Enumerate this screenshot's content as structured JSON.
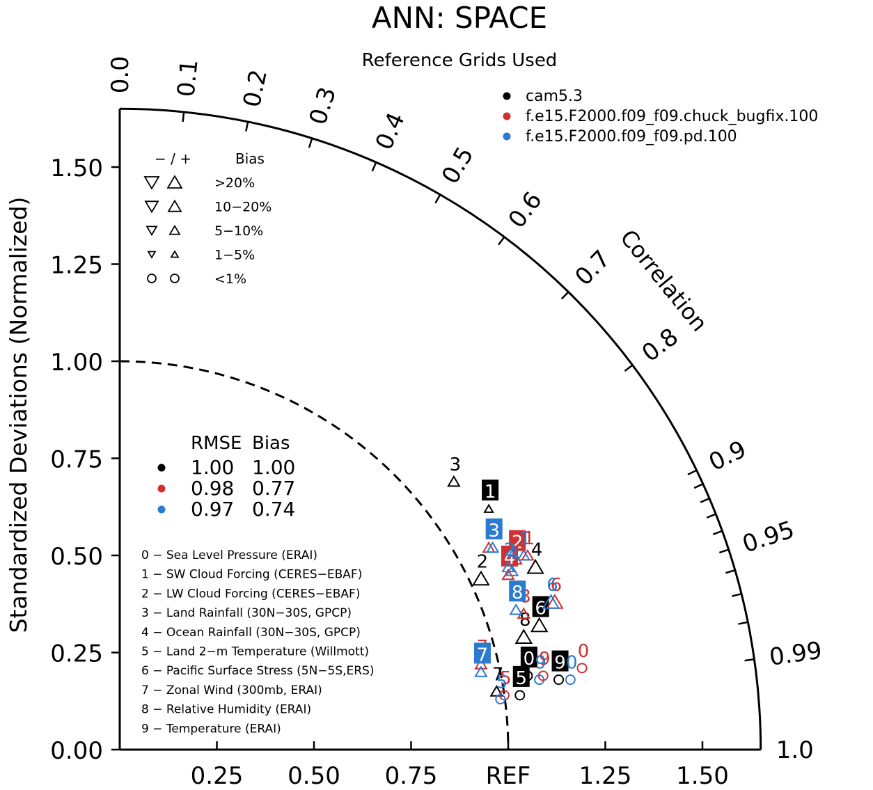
{
  "chart_data": {
    "type": "scatter",
    "subtype": "taylor-diagram",
    "title": "ANN: SPACE",
    "subtitle": "Reference Grids Used",
    "ylabel": "Standardized Deviations (Normalized)",
    "arc_label": "Correlation",
    "ylim": [
      0,
      1.65
    ],
    "y_ticks": [
      "0.00",
      "0.25",
      "0.50",
      "0.75",
      "1.00",
      "1.25",
      "1.50"
    ],
    "x_ticks": [
      "0.25",
      "0.50",
      "0.75",
      "REF",
      "1.25",
      "1.50"
    ],
    "x_tick_values": [
      0.25,
      0.5,
      0.75,
      1.0,
      1.25,
      1.5
    ],
    "correlation_labels": [
      "0.0",
      "0.1",
      "0.2",
      "0.3",
      "0.4",
      "0.5",
      "0.6",
      "0.7",
      "0.8",
      "0.9",
      "0.95",
      "0.99",
      "1.0"
    ],
    "colors": {
      "cam5.3": "#000000",
      "chuck_bugfix": "#d03030",
      "pd": "#2a7ad0"
    },
    "legend": [
      {
        "name": "cam5.3",
        "color": "#000000"
      },
      {
        "name": "f.e15.F2000.f09_f09.chuck_bugfix.100",
        "color": "#d03030"
      },
      {
        "name": "f.e15.F2000.f09_f09.pd.100",
        "color": "#2a7ad0"
      }
    ],
    "bias_legend": {
      "header_signs": "−  /  +",
      "header_label": "Bias",
      "rows": [
        ">20%",
        "10−20%",
        "5−10%",
        "1−5%",
        "<1%"
      ]
    },
    "rmse_table": {
      "headers": [
        "RMSE",
        "Bias"
      ],
      "rows": [
        {
          "color": "#000000",
          "rmse": "1.00",
          "bias": "1.00"
        },
        {
          "color": "#d03030",
          "rmse": "0.98",
          "bias": "0.77"
        },
        {
          "color": "#2a7ad0",
          "rmse": "0.97",
          "bias": "0.74"
        }
      ]
    },
    "variables": [
      "0 − Sea Level Pressure (ERAI)",
      "1 − SW Cloud Forcing (CERES−EBAF)",
      "2 − LW Cloud Forcing (CERES−EBAF)",
      "3 − Land Rainfall (30N−30S, GPCP)",
      "4 − Ocean Rainfall (30N−30S, GPCP)",
      "5 − Land 2−m Temperature (Willmott)",
      "6 − Pacific Surface Stress (5N−5S,ERS)",
      "7 − Zonal Wind (300mb, ERAI)",
      "8 − Relative Humidity (ERAI)",
      "9 − Temperature (ERAI)"
    ],
    "points": [
      {
        "case": "cam5.3",
        "id": "0",
        "x": 1.05,
        "y": 0.19,
        "marker": "circle",
        "boxed": true
      },
      {
        "case": "cam5.3",
        "id": "1",
        "x": 0.95,
        "y": 0.62,
        "marker": "up-small",
        "boxed": true
      },
      {
        "case": "cam5.3",
        "id": "2",
        "x": 0.93,
        "y": 0.44,
        "marker": "up-large",
        "boxed": false
      },
      {
        "case": "cam5.3",
        "id": "3",
        "x": 0.86,
        "y": 0.69,
        "marker": "up-medium",
        "boxed": false
      },
      {
        "case": "cam5.3",
        "id": "4",
        "x": 1.07,
        "y": 0.47,
        "marker": "up-large",
        "boxed": false
      },
      {
        "case": "cam5.3",
        "id": "5",
        "x": 1.03,
        "y": 0.14,
        "marker": "circle",
        "boxed": true
      },
      {
        "case": "cam5.3",
        "id": "6",
        "x": 1.08,
        "y": 0.32,
        "marker": "up-large",
        "boxed": true
      },
      {
        "case": "cam5.3",
        "id": "7",
        "x": 0.97,
        "y": 0.15,
        "marker": "up-medium",
        "boxed": false
      },
      {
        "case": "cam5.3",
        "id": "8",
        "x": 1.04,
        "y": 0.29,
        "marker": "up-large",
        "boxed": false
      },
      {
        "case": "cam5.3",
        "id": "9",
        "x": 1.13,
        "y": 0.18,
        "marker": "circle",
        "boxed": true
      },
      {
        "case": "chuck_bugfix",
        "id": "0",
        "x": 1.19,
        "y": 0.21,
        "marker": "circle",
        "boxed": false
      },
      {
        "case": "chuck_bugfix",
        "id": "1",
        "x": 1.05,
        "y": 0.5,
        "marker": "up-medium",
        "boxed": false
      },
      {
        "case": "chuck_bugfix",
        "id": "2",
        "x": 1.02,
        "y": 0.49,
        "marker": "up-medium",
        "boxed": true
      },
      {
        "case": "chuck_bugfix",
        "id": "3",
        "x": 0.95,
        "y": 0.52,
        "marker": "up-medium",
        "boxed": false
      },
      {
        "case": "chuck_bugfix",
        "id": "4",
        "x": 1.0,
        "y": 0.45,
        "marker": "up-medium",
        "boxed": true
      },
      {
        "case": "chuck_bugfix",
        "id": "5",
        "x": 0.99,
        "y": 0.14,
        "marker": "circle",
        "boxed": false
      },
      {
        "case": "chuck_bugfix",
        "id": "6",
        "x": 1.12,
        "y": 0.38,
        "marker": "up-large",
        "boxed": false
      },
      {
        "case": "chuck_bugfix",
        "id": "7",
        "x": 0.93,
        "y": 0.22,
        "marker": "up-medium",
        "boxed": false
      },
      {
        "case": "chuck_bugfix",
        "id": "8",
        "x": 1.04,
        "y": 0.35,
        "marker": "up-medium",
        "boxed": false
      },
      {
        "case": "chuck_bugfix",
        "id": "9",
        "x": 1.09,
        "y": 0.19,
        "marker": "circle",
        "boxed": false
      },
      {
        "case": "pd",
        "id": "0",
        "x": 1.16,
        "y": 0.18,
        "marker": "circle",
        "boxed": false
      },
      {
        "case": "pd",
        "id": "1",
        "x": 1.04,
        "y": 0.5,
        "marker": "up-medium",
        "boxed": false
      },
      {
        "case": "pd",
        "id": "2",
        "x": 1.0,
        "y": 0.47,
        "marker": "up-medium",
        "boxed": false
      },
      {
        "case": "pd",
        "id": "3",
        "x": 0.96,
        "y": 0.52,
        "marker": "up-medium",
        "boxed": true
      },
      {
        "case": "pd",
        "id": "4",
        "x": 1.01,
        "y": 0.46,
        "marker": "up-medium",
        "boxed": false
      },
      {
        "case": "pd",
        "id": "5",
        "x": 0.98,
        "y": 0.13,
        "marker": "circle",
        "boxed": false
      },
      {
        "case": "pd",
        "id": "6",
        "x": 1.11,
        "y": 0.38,
        "marker": "up-large",
        "boxed": false
      },
      {
        "case": "pd",
        "id": "7",
        "x": 0.93,
        "y": 0.2,
        "marker": "up-medium",
        "boxed": true
      },
      {
        "case": "pd",
        "id": "8",
        "x": 1.02,
        "y": 0.36,
        "marker": "up-medium",
        "boxed": true
      },
      {
        "case": "pd",
        "id": "9",
        "x": 1.08,
        "y": 0.18,
        "marker": "circle",
        "boxed": false
      }
    ]
  }
}
